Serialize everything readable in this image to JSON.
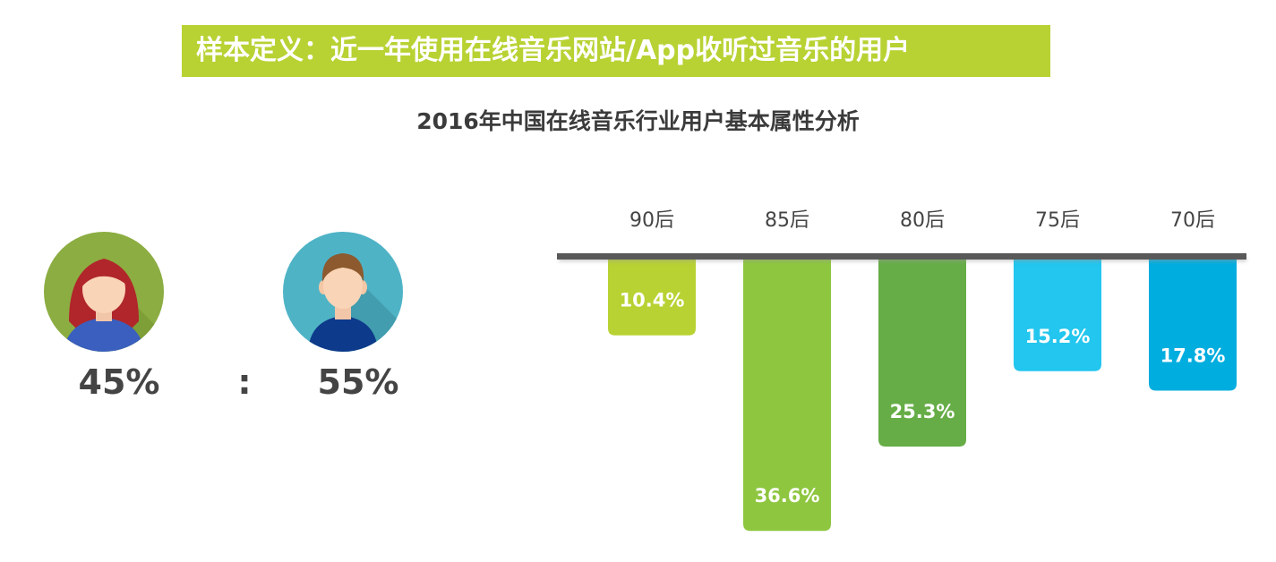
{
  "banner": {
    "text": "样本定义：近一年使用在线音乐网站/App收听过音乐的用户"
  },
  "title": "2016年中国在线音乐行业用户基本属性分析",
  "gender": {
    "female_pct": "45%",
    "separator": ":",
    "male_pct": "55%"
  },
  "colors": {
    "banner_bg": "#b8d233",
    "female_bg": "#8cad42",
    "male_bg": "#4fb3c6",
    "axis": "#595959"
  },
  "chart_data": [
    {
      "type": "pie",
      "categories": [
        "female",
        "male"
      ],
      "values": [
        45,
        55
      ],
      "value_labels": [
        "45%",
        "55%"
      ]
    },
    {
      "type": "bar",
      "orientation": "vertical-down",
      "categories": [
        "90后",
        "85后",
        "80后",
        "75后",
        "70后"
      ],
      "values": [
        10.4,
        36.6,
        25.3,
        15.2,
        17.8
      ],
      "value_labels": [
        "10.4%",
        "36.6%",
        "25.3%",
        "15.2%",
        "17.8%"
      ],
      "colors": [
        "#b8d233",
        "#8ec63f",
        "#66ad47",
        "#22c6ee",
        "#00addf"
      ],
      "ylim": [
        0,
        40
      ],
      "grid": false
    }
  ]
}
